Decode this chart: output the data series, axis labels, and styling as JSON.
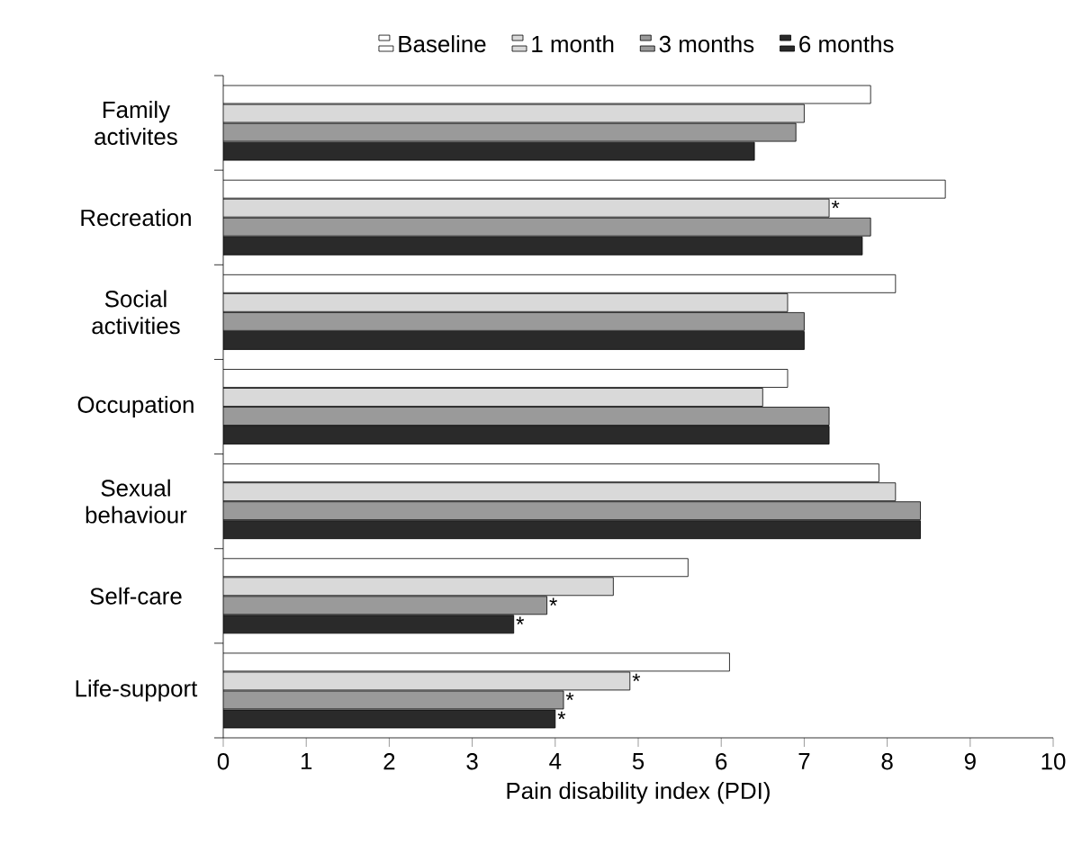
{
  "chart_data": {
    "type": "bar",
    "orientation": "horizontal",
    "xlabel": "Pain disability index (PDI)",
    "categories": [
      "Family activites",
      "Recreation",
      "Social activities",
      "Occupation",
      "Sexual behaviour",
      "Self-care",
      "Life-support"
    ],
    "series": [
      {
        "name": "Baseline",
        "color": "#ffffff",
        "values": [
          7.8,
          8.7,
          8.1,
          6.8,
          7.9,
          5.6,
          6.1
        ]
      },
      {
        "name": "1 month",
        "color": "#d9d9d9",
        "values": [
          7.0,
          7.3,
          6.8,
          6.5,
          8.1,
          4.7,
          4.9
        ],
        "value_labels": [
          null,
          "*",
          null,
          null,
          null,
          null,
          "*"
        ]
      },
      {
        "name": "3 months",
        "color": "#9a9a9a",
        "values": [
          6.9,
          7.8,
          7.0,
          7.3,
          8.4,
          3.9,
          4.1
        ],
        "value_labels": [
          null,
          null,
          null,
          null,
          null,
          "*",
          "*"
        ]
      },
      {
        "name": "6 months",
        "color": "#2a2a2a",
        "values": [
          6.4,
          7.7,
          7.0,
          7.3,
          8.4,
          3.5,
          4.0
        ],
        "value_labels": [
          null,
          null,
          null,
          null,
          null,
          "*",
          "*"
        ]
      }
    ],
    "xlim": [
      0,
      10
    ],
    "xticks": [
      0,
      1,
      2,
      3,
      4,
      5,
      6,
      7,
      8,
      9,
      10
    ],
    "legend": "top"
  }
}
